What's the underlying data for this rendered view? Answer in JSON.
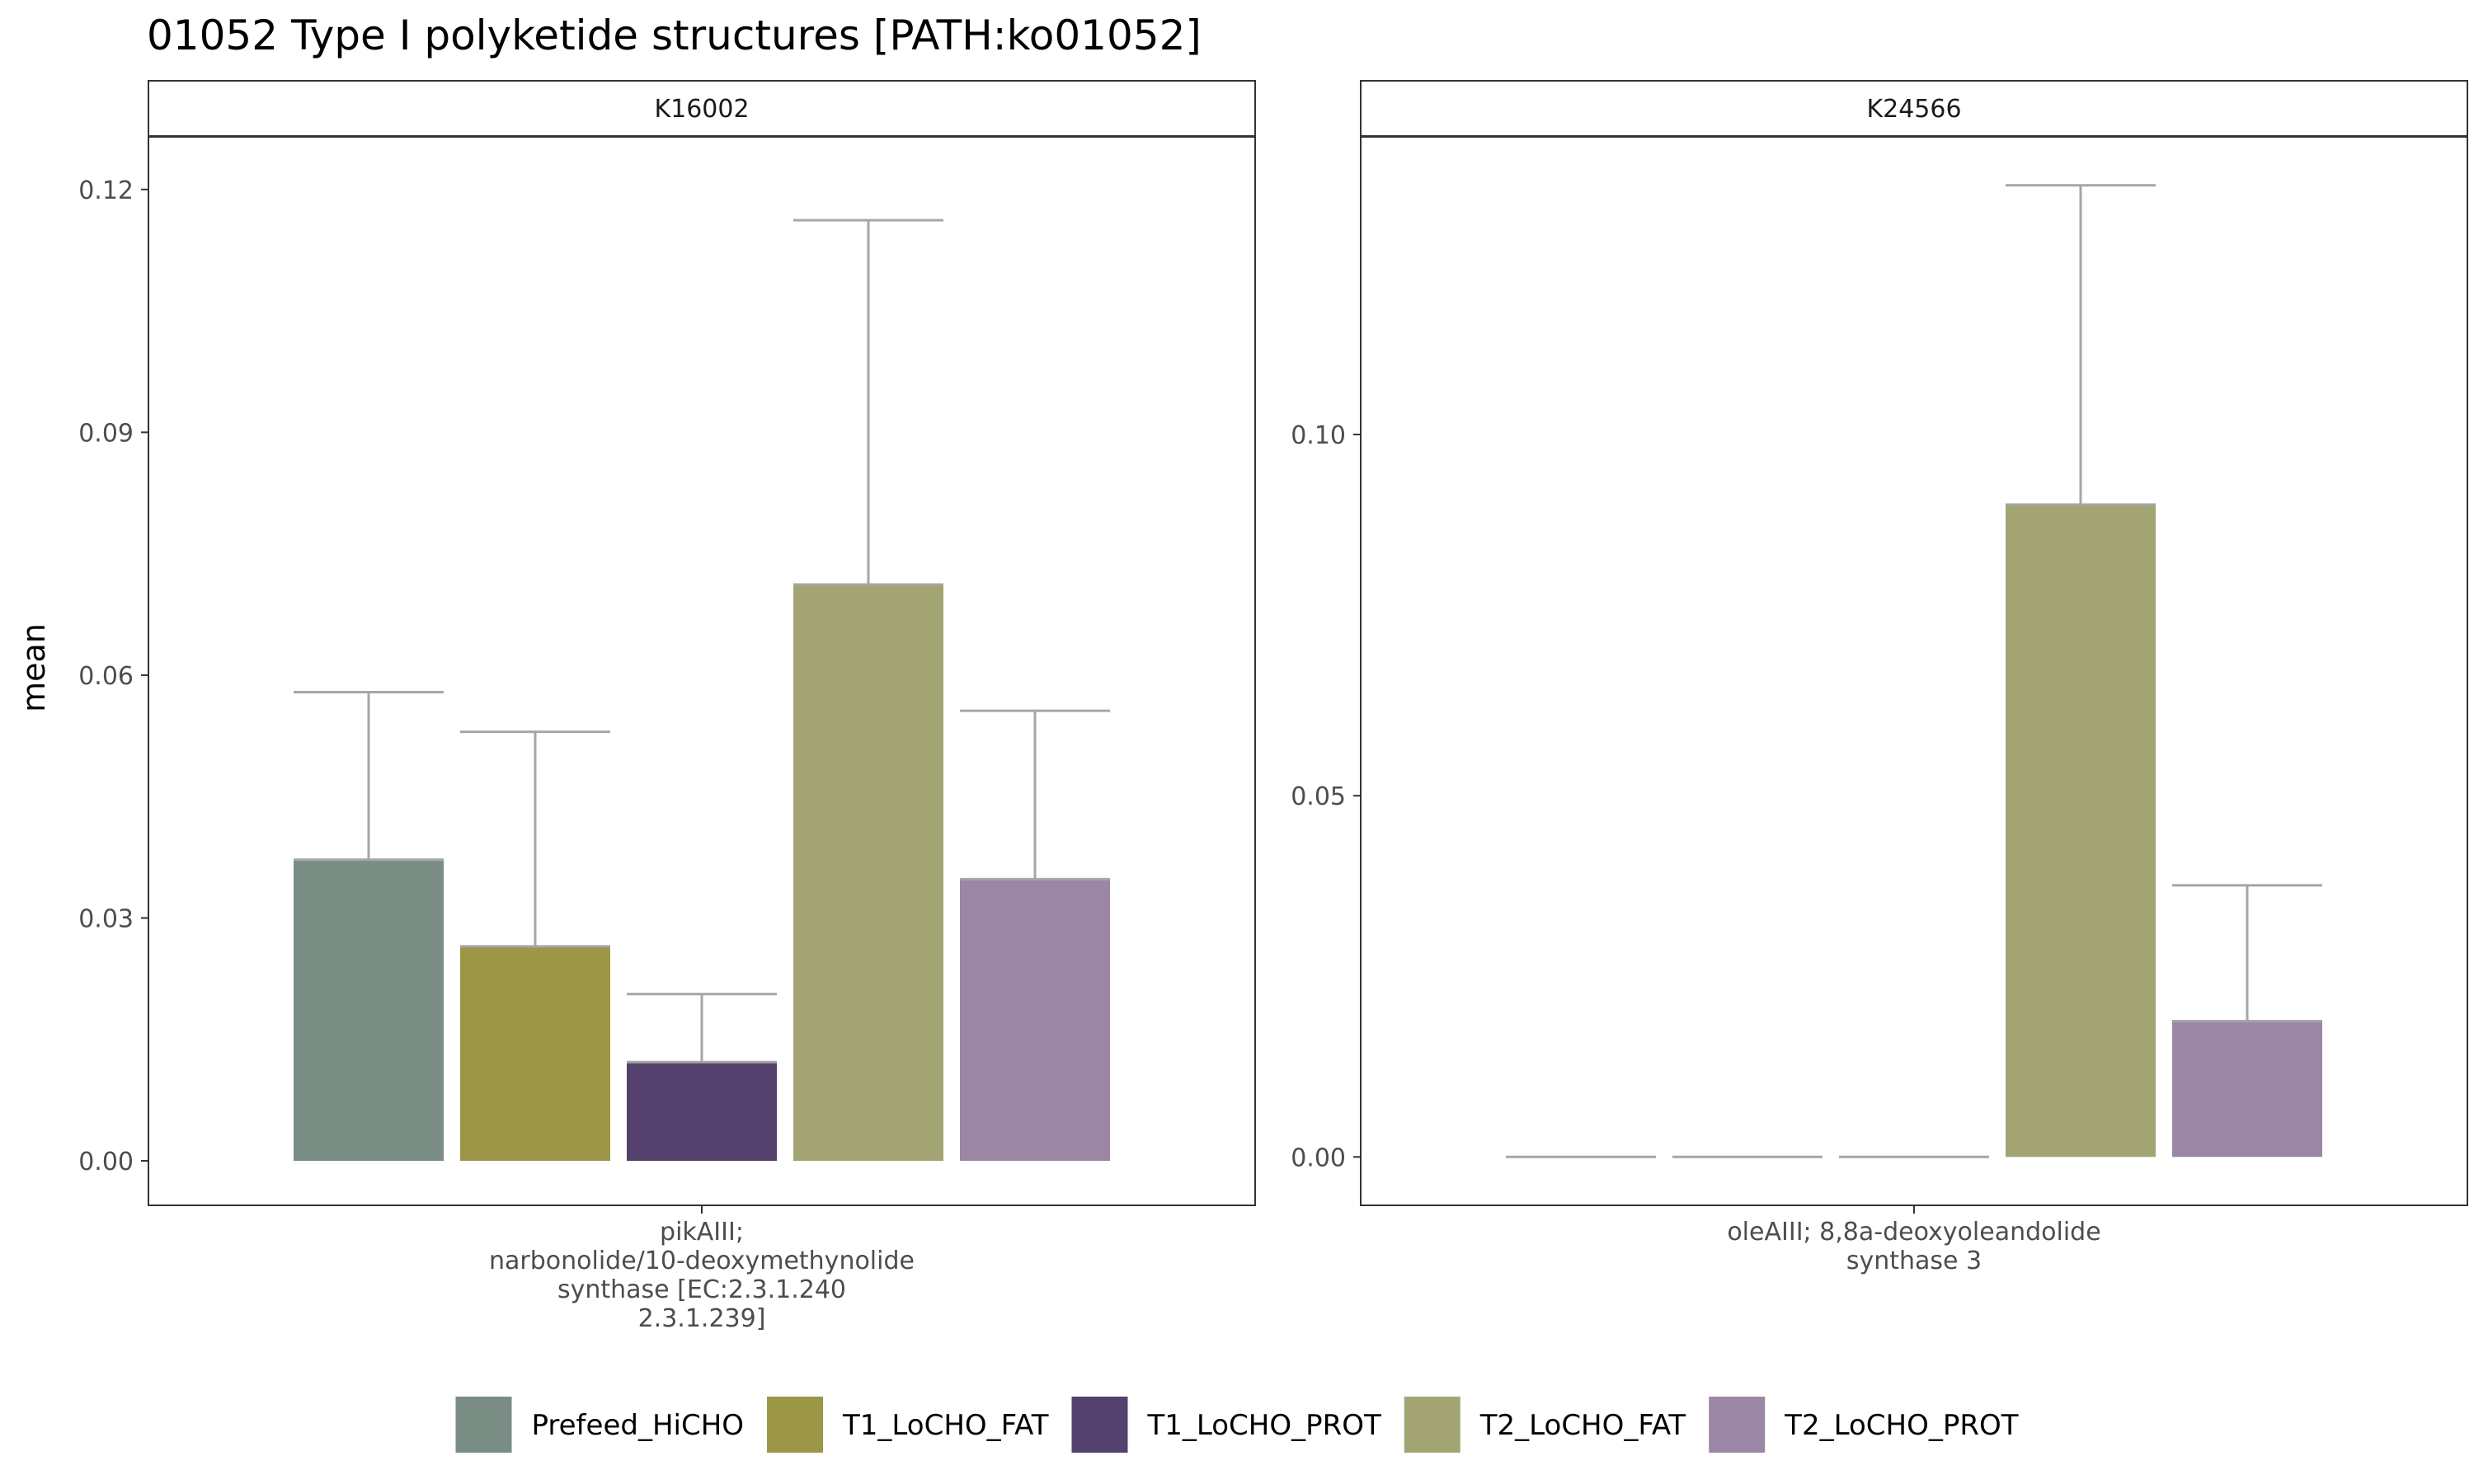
{
  "chart_data": {
    "type": "bar",
    "title": "01052 Type I polyketide structures [PATH:ko01052]",
    "ylabel": "mean",
    "grid": false,
    "legend_position": "bottom",
    "legend": [
      {
        "name": "Prefeed_HiCHO",
        "color": "#798d85"
      },
      {
        "name": "T1_LoCHO_FAT",
        "color": "#9c9647"
      },
      {
        "name": "T1_LoCHO_PROT",
        "color": "#54416d"
      },
      {
        "name": "T2_LoCHO_FAT",
        "color": "#a2a474"
      },
      {
        "name": "T2_LoCHO_PROT",
        "color": "#9b87a5"
      }
    ],
    "error_bar_color": "#a6a6a6",
    "panels": [
      {
        "strip": "K16002",
        "category_lines": [
          "pikAIII;",
          "narbonolide/10-deoxymethynolide",
          "synthase [EC:2.3.1.240",
          "2.3.1.239]"
        ],
        "ylim": [
          -0.0055,
          0.1265
        ],
        "yticks": [
          0.0,
          0.03,
          0.06,
          0.09,
          0.12
        ],
        "ytick_labels": [
          "0.00",
          "0.03",
          "0.06",
          "0.09",
          "0.12"
        ],
        "bars": [
          {
            "series": "Prefeed_HiCHO",
            "value": 0.0372,
            "err_upper": 0.0579
          },
          {
            "series": "T1_LoCHO_FAT",
            "value": 0.0265,
            "err_upper": 0.053
          },
          {
            "series": "T1_LoCHO_PROT",
            "value": 0.0122,
            "err_upper": 0.0206
          },
          {
            "series": "T2_LoCHO_FAT",
            "value": 0.0712,
            "err_upper": 0.1162
          },
          {
            "series": "T2_LoCHO_PROT",
            "value": 0.0348,
            "err_upper": 0.0556
          }
        ]
      },
      {
        "strip": "K24566",
        "category_lines": [
          "oleAIII; 8,8a-deoxyoleandolide",
          "synthase 3"
        ],
        "ylim": [
          -0.0067,
          0.1412
        ],
        "yticks": [
          0.0,
          0.05,
          0.1
        ],
        "ytick_labels": [
          "0.00",
          "0.05",
          "0.10"
        ],
        "bars": [
          {
            "series": "Prefeed_HiCHO",
            "value": 0.0,
            "err_upper": 0.0
          },
          {
            "series": "T1_LoCHO_FAT",
            "value": 0.0,
            "err_upper": 0.0
          },
          {
            "series": "T1_LoCHO_PROT",
            "value": 0.0,
            "err_upper": 0.0
          },
          {
            "series": "T2_LoCHO_FAT",
            "value": 0.0903,
            "err_upper": 0.1345
          },
          {
            "series": "T2_LoCHO_PROT",
            "value": 0.0188,
            "err_upper": 0.0376
          }
        ]
      }
    ]
  }
}
